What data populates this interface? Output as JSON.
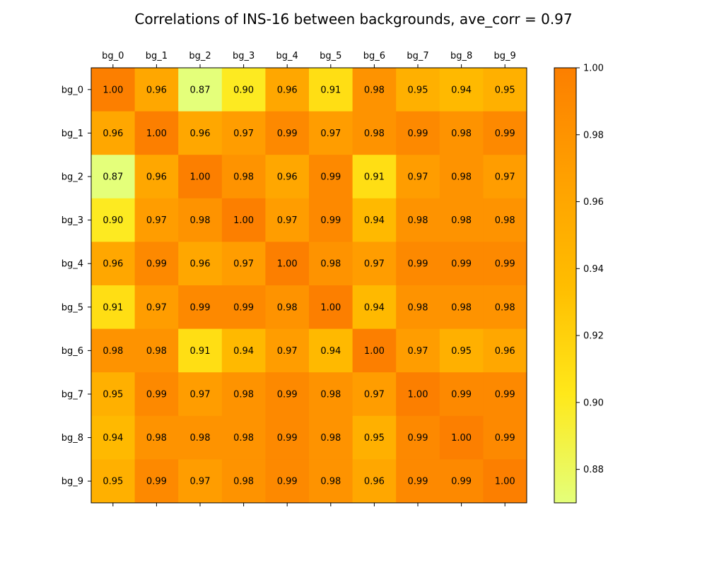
{
  "chart_data": {
    "type": "heatmap",
    "title": "Correlations of INS-16 between backgrounds, ave_corr = 0.97",
    "x_labels": [
      "bg_0",
      "bg_1",
      "bg_2",
      "bg_3",
      "bg_4",
      "bg_5",
      "bg_6",
      "bg_7",
      "bg_8",
      "bg_9"
    ],
    "y_labels": [
      "bg_0",
      "bg_1",
      "bg_2",
      "bg_3",
      "bg_4",
      "bg_5",
      "bg_6",
      "bg_7",
      "bg_8",
      "bg_9"
    ],
    "values": [
      [
        1.0,
        0.96,
        0.87,
        0.9,
        0.96,
        0.91,
        0.98,
        0.95,
        0.94,
        0.95
      ],
      [
        0.96,
        1.0,
        0.96,
        0.97,
        0.99,
        0.97,
        0.98,
        0.99,
        0.98,
        0.99
      ],
      [
        0.87,
        0.96,
        1.0,
        0.98,
        0.96,
        0.99,
        0.91,
        0.97,
        0.98,
        0.97
      ],
      [
        0.9,
        0.97,
        0.98,
        1.0,
        0.97,
        0.99,
        0.94,
        0.98,
        0.98,
        0.98
      ],
      [
        0.96,
        0.99,
        0.96,
        0.97,
        1.0,
        0.98,
        0.97,
        0.99,
        0.99,
        0.99
      ],
      [
        0.91,
        0.97,
        0.99,
        0.99,
        0.98,
        1.0,
        0.94,
        0.98,
        0.98,
        0.98
      ],
      [
        0.98,
        0.98,
        0.91,
        0.94,
        0.97,
        0.94,
        1.0,
        0.97,
        0.95,
        0.96
      ],
      [
        0.95,
        0.99,
        0.97,
        0.98,
        0.99,
        0.98,
        0.97,
        1.0,
        0.99,
        0.99
      ],
      [
        0.94,
        0.98,
        0.98,
        0.98,
        0.99,
        0.98,
        0.95,
        0.99,
        1.0,
        0.99
      ],
      [
        0.95,
        0.99,
        0.97,
        0.98,
        0.99,
        0.98,
        0.96,
        0.99,
        0.99,
        1.0
      ]
    ],
    "x_axis_position": "top",
    "colormap": "Wistia",
    "colormap_stops": [
      "#e4ff7a",
      "#ffe81a",
      "#ffbd00",
      "#ffa000",
      "#fc7f00"
    ],
    "vmin": 0.87,
    "vmax": 1.0,
    "colorbar_ticks": [
      0.88,
      0.9,
      0.92,
      0.94,
      0.96,
      0.98,
      1.0
    ],
    "value_format_decimals": 2,
    "grid": false,
    "legend": "colorbar-right"
  }
}
